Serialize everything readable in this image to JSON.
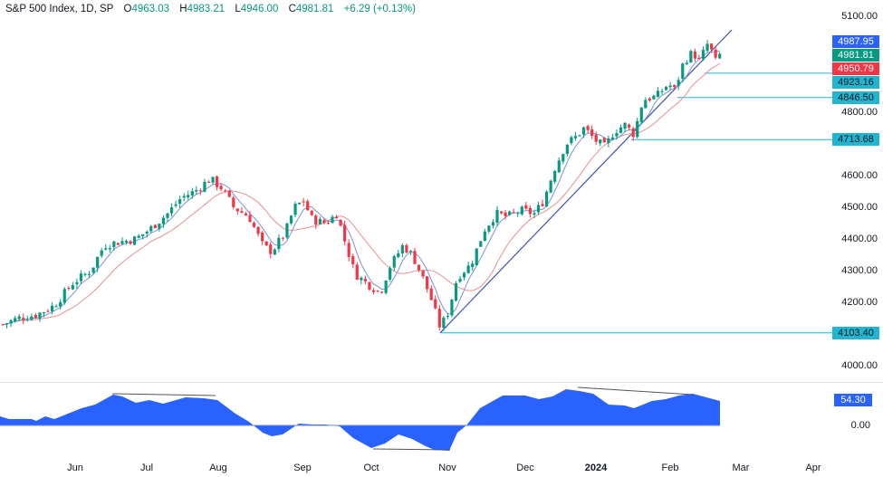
{
  "header": {
    "symbol": "S&P 500 Index, 1D, SP",
    "open_label": "O",
    "open": "4963.03",
    "high_label": "H",
    "high": "4983.21",
    "low_label": "L",
    "low": "4946.00",
    "close_label": "C",
    "close": "4981.81",
    "change": "+6.29 (+0.13%)"
  },
  "price_axis": {
    "ticks": [
      "5100.00",
      "4800.00",
      "4600.00",
      "4500.00",
      "4400.00",
      "4300.00",
      "4200.00",
      "4000.00"
    ]
  },
  "price_tags": [
    {
      "value": "4987.95",
      "color": "#2962ff",
      "text_color": "#ffffff"
    },
    {
      "value": "4981.81",
      "color": "#089981",
      "text_color": "#ffffff"
    },
    {
      "value": "4950.79",
      "color": "#f23645",
      "text_color": "#ffffff"
    },
    {
      "value": "4923.16",
      "color": "#22b5cf",
      "text_color": "#131722"
    },
    {
      "value": "4846.50",
      "color": "#22b5cf",
      "text_color": "#131722"
    },
    {
      "value": "4713.68",
      "color": "#22b5cf",
      "text_color": "#131722"
    },
    {
      "value": "4103.40",
      "color": "#22b5cf",
      "text_color": "#131722"
    }
  ],
  "oscillator": {
    "value_tag": "54.30",
    "value_color": "#2962ff",
    "zero_label": "0.00"
  },
  "time_axis": {
    "labels": [
      "Jun",
      "Jul",
      "Aug",
      "Sep",
      "Oct",
      "Nov",
      "Dec",
      "2024",
      "Feb",
      "Mar",
      "Apr"
    ]
  },
  "colors": {
    "up": "#089981",
    "down": "#f23645",
    "ma_fast": "#7b93d6",
    "ma_slow": "#e88f8f",
    "trendline": "#3f51b5",
    "support": "#22b5cf",
    "oscillator_fill": "#2962ff"
  },
  "chart_data": {
    "type": "candlestick",
    "title": "S&P 500 Index, 1D, SP",
    "xlabel": "",
    "ylabel": "",
    "ylim": [
      3960,
      5130
    ],
    "x_ticks": [
      "Jun",
      "Jul",
      "Aug",
      "Sep",
      "Oct",
      "Nov",
      "Dec",
      "2024",
      "Feb",
      "Mar",
      "Apr"
    ],
    "last_bar": {
      "open": 4963.03,
      "high": 4983.21,
      "low": 4946.0,
      "close": 4981.81,
      "change": 6.29,
      "change_pct": 0.13
    },
    "approx_close_path": [
      {
        "date": "late May 2023",
        "close": 4130
      },
      {
        "date": "early Jun",
        "close": 4160
      },
      {
        "date": "mid Jun",
        "close": 4400
      },
      {
        "date": "early Jul",
        "close": 4410
      },
      {
        "date": "mid Jul",
        "close": 4530
      },
      {
        "date": "end Jul",
        "close": 4590
      },
      {
        "date": "mid Aug",
        "close": 4370
      },
      {
        "date": "early Sep",
        "close": 4510
      },
      {
        "date": "mid Sep",
        "close": 4480
      },
      {
        "date": "early Oct",
        "close": 4230
      },
      {
        "date": "mid Oct",
        "close": 4380
      },
      {
        "date": "late Oct",
        "close": 4120
      },
      {
        "date": "mid Nov",
        "close": 4500
      },
      {
        "date": "early Dec",
        "close": 4560
      },
      {
        "date": "mid Dec",
        "close": 4720
      },
      {
        "date": "end Dec",
        "close": 4770
      },
      {
        "date": "early Jan 2024",
        "close": 4700
      },
      {
        "date": "late Jan",
        "close": 4890
      },
      {
        "date": "early Feb",
        "close": 4950
      },
      {
        "date": "mid Feb",
        "close": 5020
      },
      {
        "date": "late Feb",
        "close": 4981.81
      }
    ],
    "horizontal_levels": [
      4923.16,
      4846.5,
      4713.68,
      4103.4
    ],
    "trendline": {
      "from": {
        "date": "late Oct 2023",
        "price": 4103.4
      },
      "to": {
        "date": "late Feb 2024",
        "price": 5000
      }
    },
    "overlays": [
      "fast moving average (blue)",
      "slow moving average (red)"
    ],
    "oscillator": {
      "type": "area",
      "last_value": 54.3,
      "zero_line": 0.0,
      "notes": "bearish divergence lines at Jul-Aug peak and Jan-Feb peak; bullish divergence line at Oct trough"
    }
  }
}
